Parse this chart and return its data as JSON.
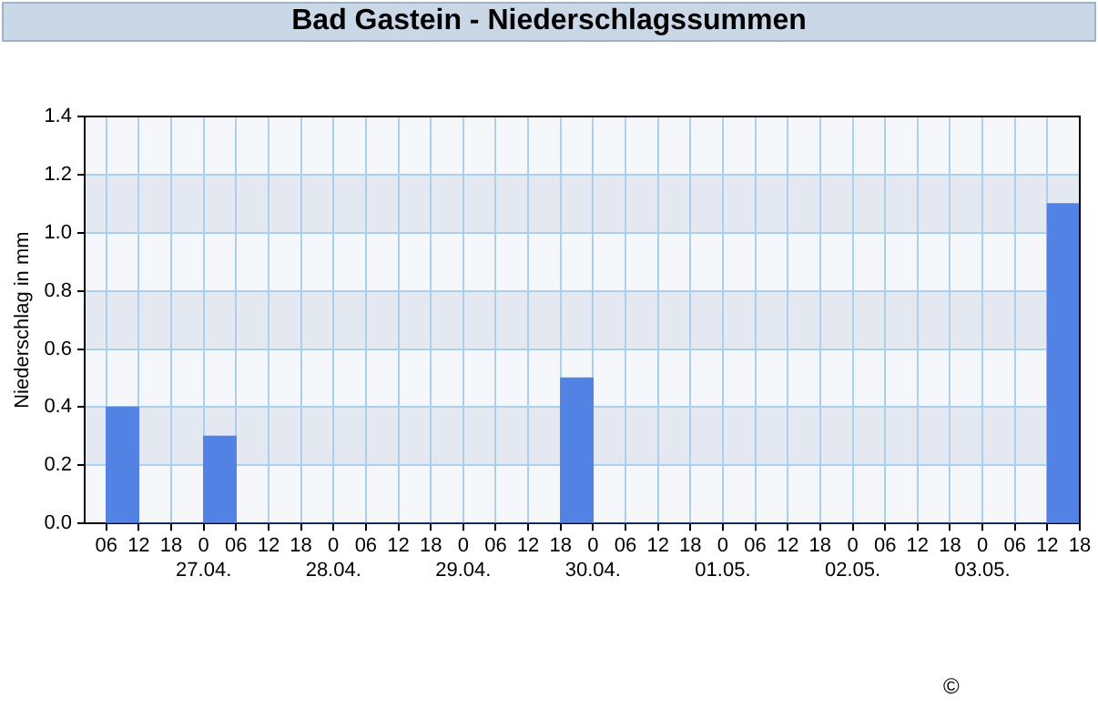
{
  "chart_data": {
    "type": "histogram",
    "title": "Bad Gastein - Niederschlagssummen",
    "ylabel": "Niederschlag in mm",
    "bins": [
      "--04-26T06:00",
      "--04-26T12:00",
      "--04-26T18:00",
      "--04-27T00:00",
      "--04-27T06:00",
      "--04-27T12:00",
      "--04-27T18:00",
      "--04-28T00:00",
      "--04-28T06:00",
      "--04-28T12:00",
      "--04-28T18:00",
      "--04-29T00:00",
      "--04-29T06:00",
      "--04-29T12:00",
      "--04-29T18:00",
      "--04-30T00:00",
      "--04-30T06:00",
      "--04-30T12:00",
      "--04-30T18:00",
      "--05-01T00:00",
      "--05-01T06:00",
      "--05-01T12:00",
      "--05-01T18:00",
      "--05-02T00:00",
      "--05-02T06:00",
      "--05-02T12:00",
      "--05-02T18:00",
      "--05-03T00:00",
      "--05-03T06:00",
      "--05-03T12:00",
      "--05-03T18:00"
    ],
    "values": [
      0.4,
      0,
      0,
      0.3,
      0,
      0,
      0,
      0,
      0,
      0,
      0,
      0,
      0,
      0,
      0.5,
      0,
      0,
      0,
      0,
      0,
      0,
      0,
      0,
      0,
      0,
      0,
      0,
      0,
      0,
      1.1
    ],
    "color": "#5282e3",
    "xlim": [
      "--04-26T02:00",
      "--05-03T18:00"
    ],
    "xticks": [
      {
        "value": "--04-26T06:00",
        "label": "06"
      },
      {
        "value": "--04-26T12:00",
        "label": "12"
      },
      {
        "value": "--04-26T18:00",
        "label": "18"
      },
      {
        "value": "--04-27T00:00",
        "label": "0\n27.04."
      },
      {
        "value": "--04-27T06:00",
        "label": "06"
      },
      {
        "value": "--04-27T12:00",
        "label": "12"
      },
      {
        "value": "--04-27T18:00",
        "label": "18"
      },
      {
        "value": "--04-28T00:00",
        "label": "0\n28.04."
      },
      {
        "value": "--04-28T06:00",
        "label": "06"
      },
      {
        "value": "--04-28T12:00",
        "label": "12"
      },
      {
        "value": "--04-28T18:00",
        "label": "18"
      },
      {
        "value": "--04-29T00:00",
        "label": "0\n29.04."
      },
      {
        "value": "--04-29T06:00",
        "label": "06"
      },
      {
        "value": "--04-29T12:00",
        "label": "12"
      },
      {
        "value": "--04-29T18:00",
        "label": "18"
      },
      {
        "value": "--04-30T00:00",
        "label": "0\n30.04."
      },
      {
        "value": "--04-30T06:00",
        "label": "06"
      },
      {
        "value": "--04-30T12:00",
        "label": "12"
      },
      {
        "value": "--04-30T18:00",
        "label": "18"
      },
      {
        "value": "--05-01T00:00",
        "label": "0\n01.05."
      },
      {
        "value": "--05-01T06:00",
        "label": "06"
      },
      {
        "value": "--05-01T12:00",
        "label": "12"
      },
      {
        "value": "--05-01T18:00",
        "label": "18"
      },
      {
        "value": "--05-02T00:00",
        "label": "0\n02.05."
      },
      {
        "value": "--05-02T06:00",
        "label": "06"
      },
      {
        "value": "--05-02T12:00",
        "label": "12"
      },
      {
        "value": "--05-02T18:00",
        "label": "18"
      },
      {
        "value": "--05-03T00:00",
        "label": "0\n03.05."
      },
      {
        "value": "--05-03T06:00",
        "label": "06"
      },
      {
        "value": "--05-03T12:00",
        "label": "12"
      },
      {
        "value": "--05-03T18:00",
        "label": "18"
      }
    ],
    "ylim": [
      0,
      1.4
    ],
    "yticks": [
      {
        "value": 0,
        "label": "0.0"
      },
      {
        "value": 0.2,
        "label": "0.2"
      },
      {
        "value": 0.4,
        "label": "0.4"
      },
      {
        "value": 0.6,
        "label": "0.6"
      },
      {
        "value": 0.8,
        "label": "0.8"
      },
      {
        "value": 1,
        "label": "1.0"
      },
      {
        "value": 1.2,
        "label": "1.2"
      },
      {
        "value": 1.4,
        "label": "1.4"
      }
    ],
    "grid": true,
    "legend": false,
    "annotations": [
      "©"
    ]
  }
}
